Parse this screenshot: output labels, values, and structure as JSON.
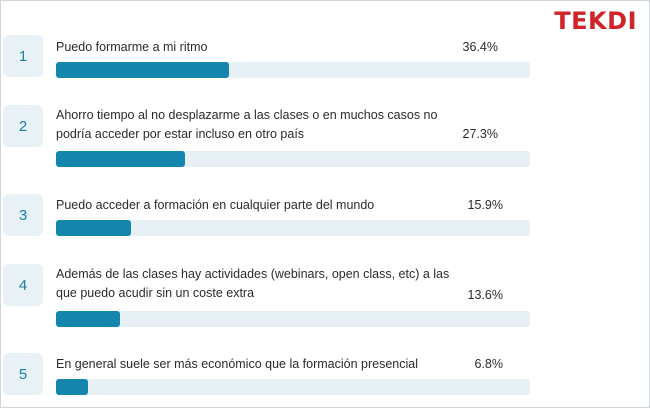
{
  "brand": {
    "logo_text": "TEKDI",
    "logo_color": "#d1232a"
  },
  "colors": {
    "bar_fill": "#1486ae",
    "bar_track": "#e6f0f5",
    "number_bg": "#e8f1f6",
    "number_text": "#1a7fa8"
  },
  "chart_data": {
    "type": "bar",
    "orientation": "horizontal",
    "xlim": [
      0,
      100
    ],
    "categories": [
      "Puedo formarme a mi ritmo",
      "Ahorro tiempo al no desplazarme a las clases o en muchos casos no podría acceder por estar incluso en otro país",
      "Puedo acceder a formación en cualquier parte del mundo",
      "Además de las clases hay actividades (webinars, open class, etc) a las que puedo acudir sin un coste extra",
      "En general suele ser más económico que la formación presencial"
    ],
    "values": [
      36.4,
      27.3,
      15.9,
      13.6,
      6.8
    ],
    "value_labels": [
      "36.4%",
      "27.3%",
      "15.9%",
      "13.6%",
      "6.8%"
    ],
    "ranks": [
      "1",
      "2",
      "3",
      "4",
      "5"
    ]
  }
}
